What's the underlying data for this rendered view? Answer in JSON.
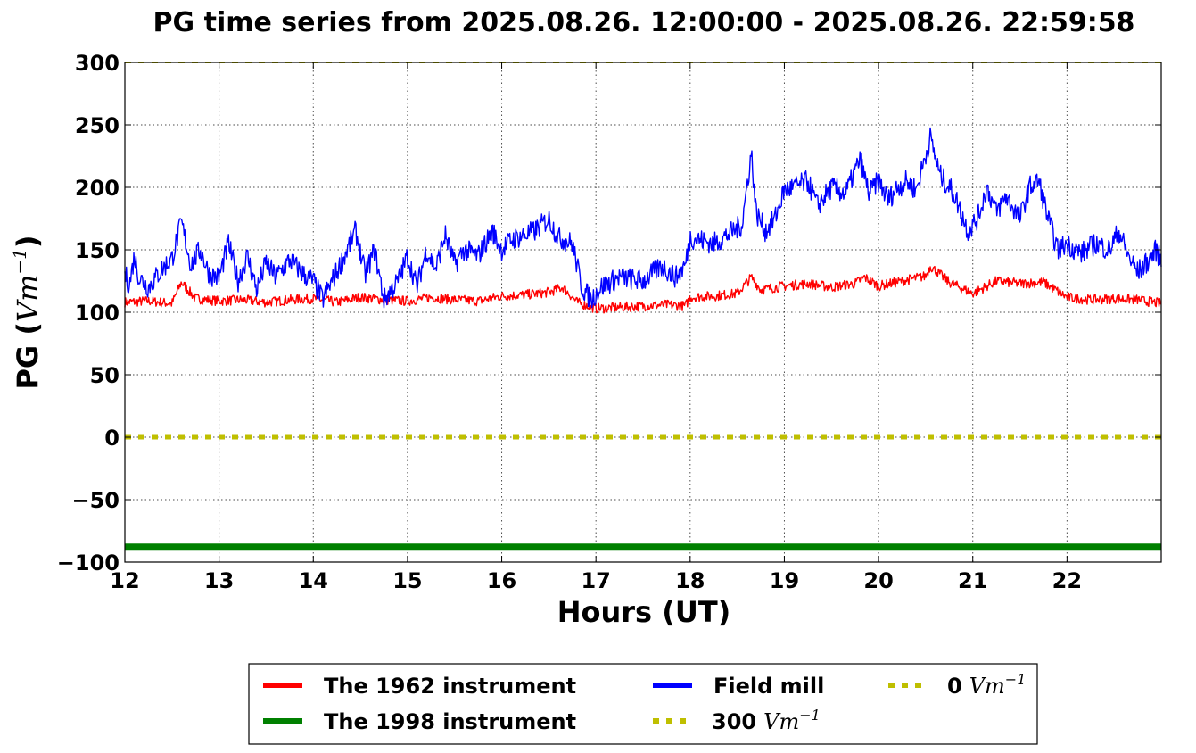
{
  "chart_data": {
    "type": "line",
    "title": "PG time series from 2025.08.26. 12:00:00 - 2025.08.26. 22:59:58",
    "xlabel": "Hours (UT)",
    "ylabel": {
      "prefix": "PG (",
      "math": "Vm",
      "sup": "−1",
      "suffix": ")"
    },
    "xlim": [
      12,
      23
    ],
    "ylim": [
      -100,
      300
    ],
    "xticks": [
      12,
      13,
      14,
      15,
      16,
      17,
      18,
      19,
      20,
      21,
      22
    ],
    "yticks": [
      300,
      250,
      200,
      150,
      100,
      50,
      0,
      -50,
      -100
    ],
    "ytick_labels": [
      "300",
      "250",
      "200",
      "150",
      "100",
      "50",
      "0",
      "−50",
      "−100"
    ],
    "grid": true,
    "legend_position": "below",
    "series": [
      {
        "name": "The 1962 instrument",
        "color": "#ff0000",
        "style": "solid",
        "x": [
          12.0,
          12.25,
          12.5,
          12.6,
          12.75,
          13.0,
          13.25,
          13.5,
          13.75,
          14.0,
          14.25,
          14.5,
          14.75,
          15.0,
          15.25,
          15.5,
          15.75,
          16.0,
          16.25,
          16.5,
          16.65,
          16.8,
          17.0,
          17.25,
          17.5,
          17.75,
          17.95,
          18.0,
          18.25,
          18.5,
          18.65,
          18.75,
          19.0,
          19.25,
          19.5,
          19.75,
          19.85,
          20.0,
          20.25,
          20.5,
          20.55,
          20.75,
          21.0,
          21.25,
          21.5,
          21.75,
          22.0,
          22.25,
          22.5,
          22.75,
          23.0
        ],
        "y": [
          108,
          109,
          107,
          124,
          111,
          109,
          110,
          108,
          110,
          111,
          108,
          112,
          110,
          109,
          112,
          110,
          109,
          113,
          114,
          116,
          120,
          108,
          103,
          104,
          105,
          106,
          105,
          112,
          113,
          115,
          128,
          118,
          121,
          123,
          120,
          123,
          128,
          121,
          125,
          129,
          137,
          124,
          115,
          125,
          123,
          124,
          112,
          110,
          111,
          110,
          107
        ]
      },
      {
        "name": "The 1998 instrument",
        "color": "#008000",
        "style": "solid",
        "x": [
          12,
          23
        ],
        "y": [
          -88,
          -88
        ]
      },
      {
        "name": "Field mill",
        "color": "#0000ff",
        "style": "solid",
        "x": [
          12.0,
          12.05,
          12.1,
          12.15,
          12.25,
          12.4,
          12.5,
          12.6,
          12.7,
          12.8,
          12.9,
          13.0,
          13.1,
          13.2,
          13.3,
          13.4,
          13.5,
          13.6,
          13.75,
          13.9,
          14.0,
          14.1,
          14.2,
          14.3,
          14.45,
          14.55,
          14.65,
          14.75,
          14.9,
          15.0,
          15.1,
          15.2,
          15.3,
          15.4,
          15.5,
          15.6,
          15.75,
          15.9,
          16.0,
          16.1,
          16.25,
          16.35,
          16.5,
          16.6,
          16.75,
          16.85,
          16.95,
          17.05,
          17.25,
          17.5,
          17.7,
          17.85,
          17.95,
          18.0,
          18.1,
          18.25,
          18.4,
          18.55,
          18.65,
          18.7,
          18.8,
          18.9,
          19.0,
          19.1,
          19.25,
          19.35,
          19.5,
          19.65,
          19.8,
          19.9,
          20.0,
          20.1,
          20.2,
          20.3,
          20.4,
          20.55,
          20.65,
          20.8,
          20.95,
          21.05,
          21.15,
          21.25,
          21.35,
          21.5,
          21.6,
          21.7,
          21.8,
          21.9,
          22.0,
          22.15,
          22.3,
          22.45,
          22.55,
          22.65,
          22.75,
          22.85,
          22.95,
          23.0
        ],
        "y": [
          130,
          122,
          145,
          128,
          120,
          135,
          143,
          172,
          138,
          150,
          130,
          128,
          155,
          125,
          145,
          118,
          140,
          128,
          142,
          130,
          125,
          110,
          125,
          140,
          165,
          130,
          150,
          110,
          125,
          145,
          120,
          150,
          135,
          162,
          138,
          150,
          145,
          165,
          150,
          158,
          162,
          165,
          175,
          160,
          155,
          120,
          110,
          120,
          128,
          125,
          137,
          128,
          138,
          160,
          158,
          155,
          162,
          170,
          228,
          180,
          165,
          175,
          198,
          200,
          205,
          185,
          200,
          195,
          222,
          195,
          205,
          190,
          200,
          205,
          198,
          240,
          210,
          195,
          165,
          175,
          200,
          180,
          193,
          175,
          200,
          205,
          175,
          150,
          155,
          147,
          155,
          150,
          165,
          145,
          132,
          140,
          150,
          140
        ]
      },
      {
        "name": "300",
        "math": "Vm",
        "sup": "−1",
        "color": "#bfbf00",
        "style": "dotted",
        "x": [
          12,
          23
        ],
        "y": [
          300,
          300
        ]
      },
      {
        "name": "0",
        "math": "Vm",
        "sup": "−1",
        "color": "#bfbf00",
        "style": "dotted",
        "x": [
          12,
          23
        ],
        "y": [
          0,
          0
        ]
      }
    ],
    "legend_order": [
      0,
      1,
      2,
      3,
      4
    ]
  }
}
